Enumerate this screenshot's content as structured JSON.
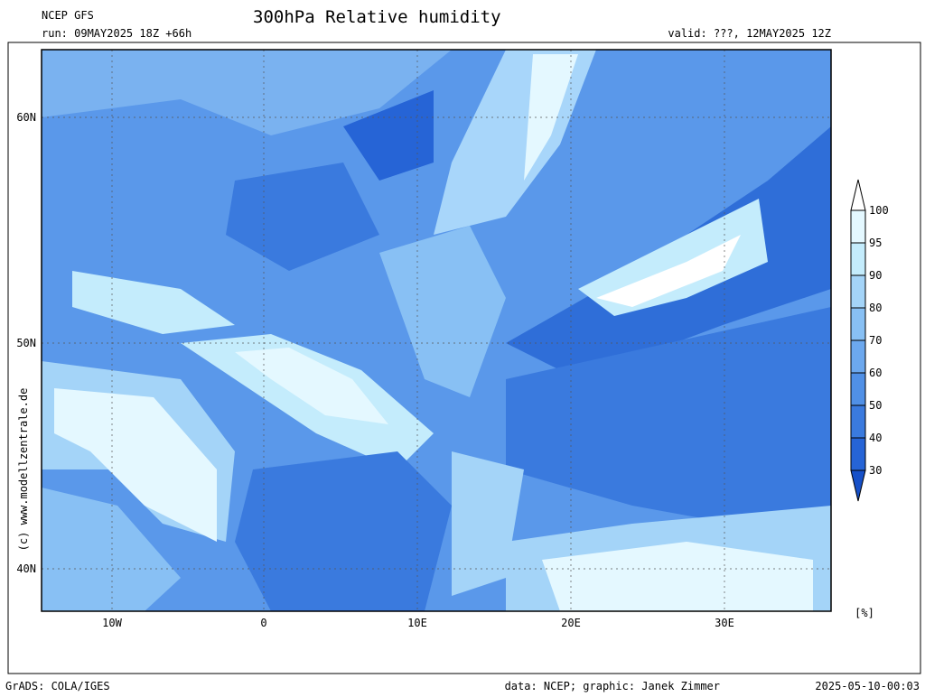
{
  "header": {
    "model": "NCEP GFS",
    "run": "run: 09MAY2025 18Z +66h",
    "title": "300hPa Relative humidity",
    "valid": "valid: ???, 12MAY2025 12Z"
  },
  "map": {
    "lat_labels": [
      "60N",
      "50N",
      "40N"
    ],
    "lon_labels": [
      "10W",
      "0",
      "10E",
      "20E",
      "30E"
    ],
    "copyright": "(c) www.modellzentrale.de"
  },
  "colorbar": {
    "levels": [
      100,
      95,
      90,
      80,
      70,
      60,
      50,
      40,
      30
    ],
    "unit": "[%]",
    "colors": [
      "#ffffff",
      "#e4f8ff",
      "#c4ecfc",
      "#a4d4f8",
      "#88c0f4",
      "#6ca8ee",
      "#5090e6",
      "#3a7ade",
      "#2664d6",
      "#1650c8"
    ]
  },
  "footer": {
    "left": "GrADS: COLA/IGES",
    "center": "data: NCEP; graphic: Janek Zimmer",
    "right": "2025-05-10-00:03"
  }
}
